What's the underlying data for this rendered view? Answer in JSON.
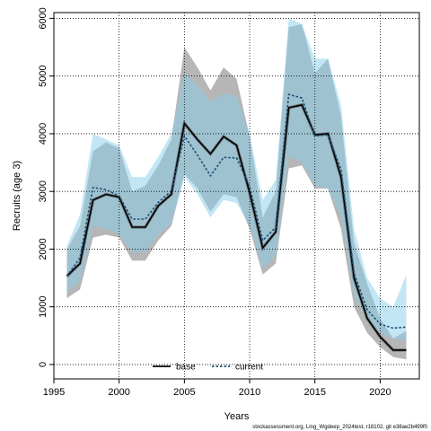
{
  "chart_data": {
    "type": "line",
    "title": "",
    "xlabel": "Years",
    "ylabel": "Recruits (age 3)",
    "xlim": [
      1995,
      2023
    ],
    "ylim": [
      -250,
      6100
    ],
    "x_ticks": [
      1995,
      2000,
      2005,
      2010,
      2015,
      2020
    ],
    "y_ticks": [
      0,
      1000,
      2000,
      3000,
      4000,
      5000,
      6000
    ],
    "grid": "dotted",
    "legend": {
      "placement": "bottom-center",
      "entries": [
        "base",
        "current"
      ]
    },
    "footnote": "stockassessment.org, Ling_Wgdeep_2024test, r18102, git e38ae2b499f0",
    "x": [
      1996,
      1997,
      1998,
      1999,
      2000,
      2001,
      2002,
      2003,
      2004,
      2005,
      2006,
      2007,
      2008,
      2009,
      2010,
      2011,
      2012,
      2013,
      2014,
      2015,
      2016,
      2017,
      2018,
      2019,
      2020,
      2021,
      2022
    ],
    "series": [
      {
        "name": "base",
        "color": "#000000",
        "style": "solid",
        "values": [
          1530,
          1750,
          2850,
          2950,
          2900,
          2380,
          2380,
          2750,
          2950,
          4180,
          3900,
          3650,
          3950,
          3800,
          2980,
          2020,
          2300,
          4450,
          4500,
          3980,
          4000,
          3250,
          1500,
          800,
          480,
          250,
          250
        ],
        "lower": [
          1150,
          1300,
          2200,
          2250,
          2200,
          1800,
          1800,
          2150,
          2400,
          3300,
          3050,
          2650,
          2950,
          2900,
          2350,
          1560,
          1750,
          3400,
          3450,
          3050,
          3050,
          2350,
          1000,
          550,
          300,
          130,
          90
        ],
        "upper": [
          2000,
          2400,
          3700,
          3850,
          3750,
          3000,
          3100,
          3450,
          3900,
          5500,
          5150,
          4750,
          5150,
          4950,
          3950,
          2550,
          3000,
          5850,
          5900,
          5050,
          5300,
          4300,
          2100,
          1400,
          800,
          450,
          580
        ],
        "band_color": "#9e9e9e"
      },
      {
        "name": "current",
        "color": "#1a4f73",
        "style": "dotted",
        "values": [
          1530,
          1850,
          3070,
          3030,
          2920,
          2520,
          2520,
          2810,
          3010,
          3960,
          3630,
          3270,
          3590,
          3580,
          3090,
          2150,
          2380,
          4680,
          4620,
          3960,
          3980,
          3380,
          1580,
          950,
          700,
          630,
          650
        ],
        "lower": [
          1250,
          1450,
          2400,
          2350,
          2250,
          1950,
          1950,
          2250,
          2450,
          3250,
          2950,
          2550,
          2850,
          2800,
          2400,
          1650,
          1900,
          3600,
          3500,
          3100,
          3050,
          2550,
          1200,
          750,
          550,
          450,
          400
        ],
        "upper": [
          2050,
          2600,
          4000,
          3900,
          3800,
          3250,
          3250,
          3600,
          4000,
          5050,
          4850,
          4550,
          4700,
          4650,
          4000,
          2850,
          3200,
          6000,
          5900,
          5300,
          5300,
          4500,
          2350,
          1500,
          1150,
          1000,
          1550
        ],
        "band_color": "#87ceeb"
      }
    ]
  }
}
